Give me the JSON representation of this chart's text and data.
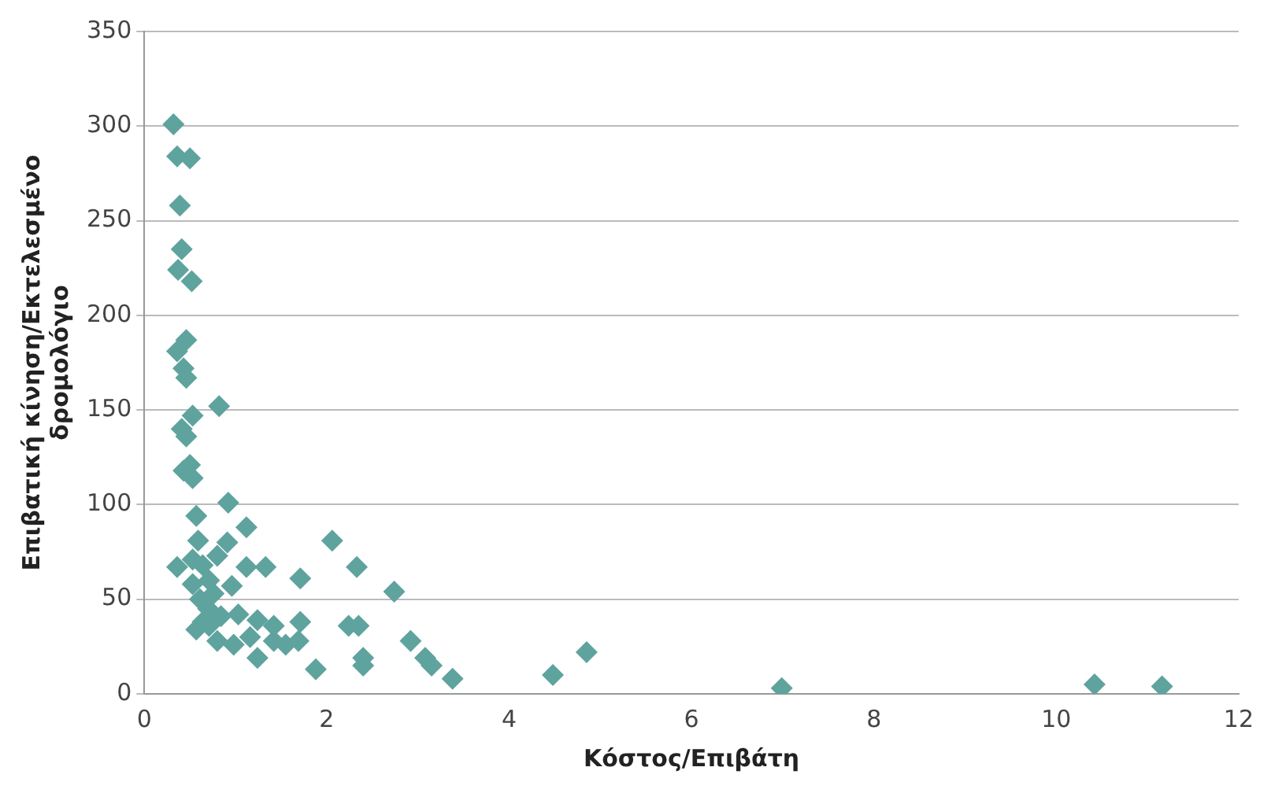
{
  "chart_data": {
    "type": "scatter",
    "xlabel": "Κόστος/Επιβάτη",
    "ylabel": "Επιβατική κίνηση/Εκτελεσμένο δρομολόγιο",
    "xlim": [
      0,
      12
    ],
    "xticks": [
      0,
      2,
      4,
      6,
      8,
      10,
      12
    ],
    "ylim": [
      0,
      350
    ],
    "yticks": [
      0,
      50,
      100,
      150,
      200,
      250,
      300,
      350
    ],
    "grid": "y",
    "marker": "diamond",
    "series": [
      {
        "color": "#5fa39e",
        "x": [
          0.32,
          0.36,
          0.5,
          0.39,
          0.41,
          0.37,
          0.52,
          0.36,
          0.46,
          0.43,
          0.46,
          0.41,
          0.53,
          0.82,
          0.46,
          0.43,
          0.5,
          0.53,
          0.92,
          0.57,
          1.12,
          0.59,
          0.91,
          2.06,
          0.36,
          0.53,
          0.64,
          0.8,
          1.12,
          1.33,
          2.33,
          1.71,
          0.53,
          0.71,
          0.96,
          0.76,
          2.74,
          0.64,
          0.71,
          0.57,
          0.84,
          1.03,
          1.24,
          1.42,
          1.71,
          2.24,
          2.35,
          2.92,
          0.8,
          0.98,
          1.16,
          1.42,
          1.55,
          1.69,
          1.24,
          1.88,
          2.4,
          2.4,
          3.08,
          3.15,
          3.38,
          4.48,
          4.85,
          6.99,
          10.42,
          11.16,
          0.61,
          0.7
        ],
        "values": [
          301,
          284,
          283,
          258,
          235,
          224,
          218,
          181,
          187,
          172,
          167,
          140,
          147,
          152,
          136,
          118,
          121,
          114,
          101,
          94,
          88,
          81,
          80,
          81,
          67,
          71,
          68,
          73,
          67,
          67,
          67,
          61,
          58,
          60,
          57,
          53,
          54,
          38,
          36,
          34,
          41,
          42,
          39,
          36,
          38,
          36,
          36,
          28,
          28,
          26,
          30,
          28,
          26,
          28,
          19,
          13,
          19,
          15,
          19,
          15,
          8,
          10,
          22,
          3,
          5,
          4,
          50,
          45
        ]
      }
    ]
  }
}
